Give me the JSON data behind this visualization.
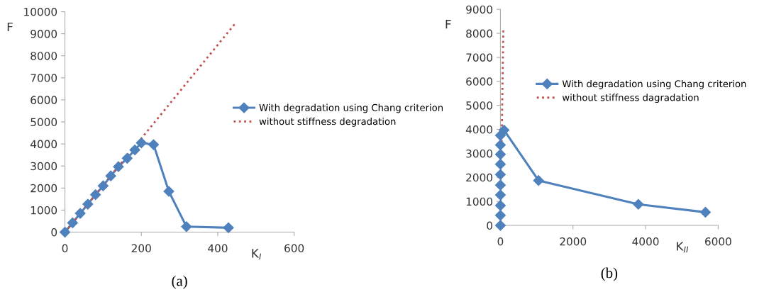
{
  "chart_data": [
    {
      "type": "line",
      "title": "(a)",
      "xlabel": "K$_{I}$",
      "ylabel": "F",
      "xlim": [
        0,
        600
      ],
      "xticks": [
        0,
        200,
        400,
        600
      ],
      "ylim": [
        0,
        10000
      ],
      "yticks": [
        0,
        1000,
        2000,
        3000,
        4000,
        5000,
        6000,
        7000,
        8000,
        9000,
        10000
      ],
      "grid": false,
      "legend": "right",
      "series": [
        {
          "name": "With degradation using Chang criterion",
          "color": "#4f81bd",
          "marker": "diamond",
          "line_style": "solid",
          "x": [
            0,
            20,
            40,
            60,
            80,
            100,
            120,
            140,
            163,
            183,
            200,
            232,
            272,
            318,
            428
          ],
          "values": [
            0,
            420,
            850,
            1270,
            1700,
            2100,
            2550,
            2970,
            3350,
            3730,
            4050,
            3970,
            1850,
            250,
            200
          ]
        },
        {
          "name": "without stiffness degradation",
          "color": "#c0504d",
          "marker": "none",
          "line_style": "dotted",
          "x": [
            0,
            445
          ],
          "values": [
            0,
            9450
          ]
        }
      ]
    },
    {
      "type": "line",
      "title": "(b)",
      "xlabel": "K$_{II}$",
      "ylabel": "F",
      "xlim": [
        0,
        6000
      ],
      "xticks": [
        0,
        2000,
        4000,
        6000
      ],
      "ylim": [
        0,
        9000
      ],
      "yticks": [
        0,
        1000,
        2000,
        3000,
        4000,
        5000,
        6000,
        7000,
        8000,
        9000
      ],
      "grid": false,
      "legend": "right",
      "series": [
        {
          "name": "With degradation using Chang criterion",
          "color": "#4f81bd",
          "marker": "diamond",
          "line_style": "solid",
          "x": [
            0,
            0,
            0,
            0,
            0,
            0,
            0,
            0,
            0,
            0,
            100,
            1050,
            3800,
            5650
          ],
          "values": [
            0,
            420,
            830,
            1270,
            1680,
            2120,
            2550,
            2960,
            3350,
            3750,
            3970,
            1870,
            880,
            550
          ]
        },
        {
          "name": "without stiffness dagradation",
          "color": "#c0504d",
          "marker": "none",
          "line_style": "dotted",
          "x": [
            0,
            80
          ],
          "values": [
            0,
            8150
          ]
        }
      ]
    }
  ]
}
